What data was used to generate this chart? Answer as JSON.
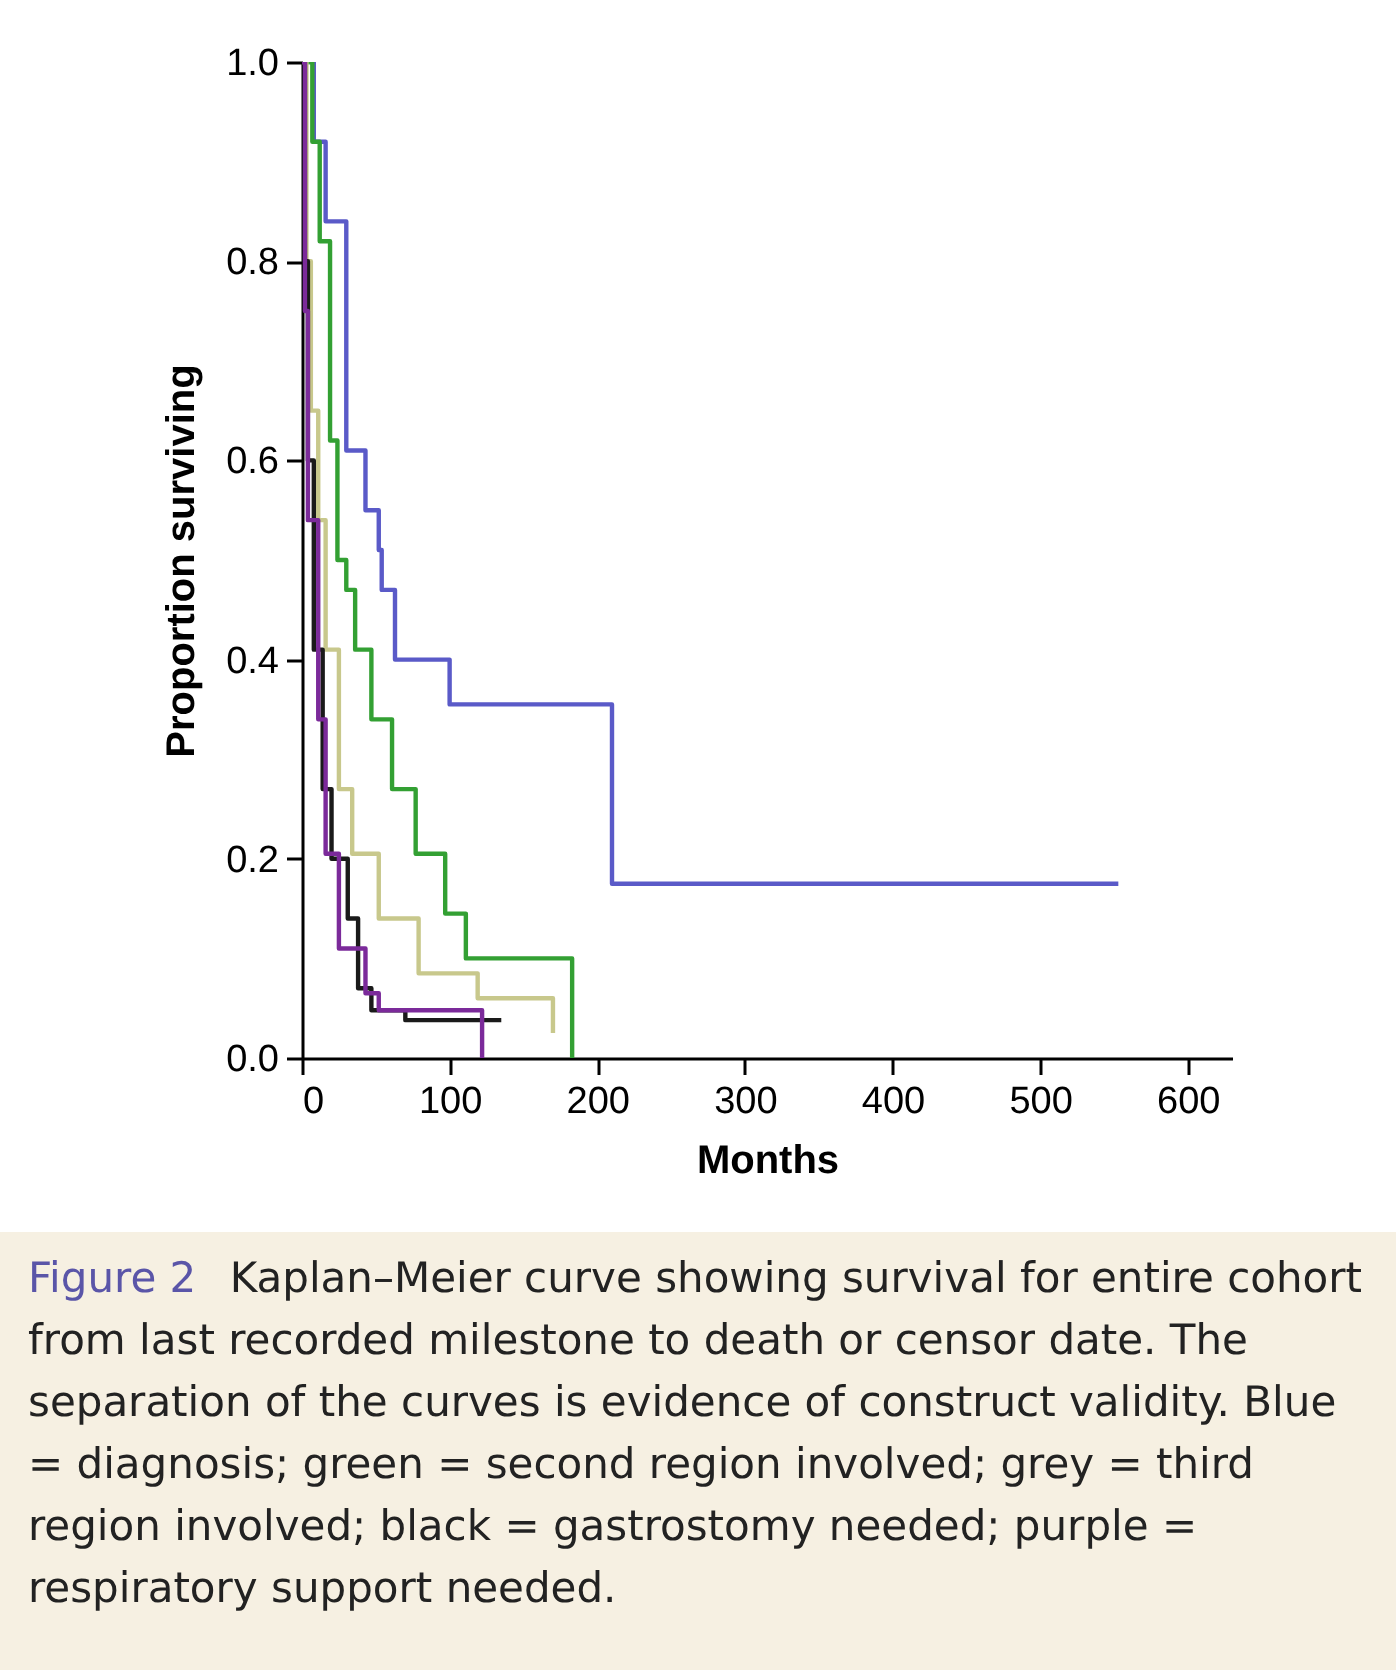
{
  "chart_data": {
    "type": "step",
    "xlabel": "Months",
    "ylabel": "Proportion surviving",
    "xlim": [
      0,
      630
    ],
    "ylim": [
      0,
      1
    ],
    "xticks": [
      0,
      100,
      200,
      300,
      400,
      500,
      600
    ],
    "yticks": [
      {
        "value": 0,
        "label": "0.0"
      },
      {
        "value": 0.2,
        "label": "0.2"
      },
      {
        "value": 0.4,
        "label": "0.4"
      },
      {
        "value": 0.6,
        "label": "0.6"
      },
      {
        "value": 0.8,
        "label": "0.8"
      },
      {
        "value": 1,
        "label": "1.0"
      }
    ],
    "grid": false,
    "line_style": "solid",
    "series": [
      {
        "color": "#5a5ac8",
        "x": [
          0,
          8,
          16,
          30,
          43,
          52,
          54,
          63,
          100,
          210,
          553
        ],
        "values": [
          1,
          0.92,
          0.84,
          0.61,
          0.55,
          0.51,
          0.47,
          0.4,
          0.355,
          0.175,
          0.175
        ]
      },
      {
        "color": "#33a033",
        "x": [
          0,
          7,
          12,
          19,
          24,
          30,
          36,
          47,
          61,
          77,
          97,
          111,
          183
        ],
        "values": [
          1,
          0.92,
          0.82,
          0.62,
          0.5,
          0.47,
          0.41,
          0.34,
          0.27,
          0.205,
          0.145,
          0.1,
          0
        ]
      },
      {
        "color": "#c8c88c",
        "x": [
          0,
          3,
          6,
          11,
          16,
          25,
          34,
          52,
          79,
          119,
          170
        ],
        "values": [
          1,
          0.8,
          0.65,
          0.54,
          0.41,
          0.27,
          0.205,
          0.14,
          0.085,
          0.06,
          0.025
        ]
      },
      {
        "color": "#1a1a1a",
        "x": [
          0,
          2,
          4,
          8,
          14,
          20,
          31,
          38,
          47,
          70,
          135
        ],
        "values": [
          1,
          0.8,
          0.6,
          0.41,
          0.27,
          0.2,
          0.14,
          0.07,
          0.048,
          0.038,
          0.038
        ]
      },
      {
        "color": "#7b2a9a",
        "x": [
          0,
          2,
          4,
          11,
          16,
          25,
          43,
          52,
          122
        ],
        "values": [
          1,
          0.75,
          0.54,
          0.34,
          0.205,
          0.11,
          0.065,
          0.048,
          0
        ]
      }
    ],
    "annotations": [
      "Figure 2",
      "Kaplan–Meier curve showing survival for entire cohort from last recorded milestone to death or censor date. The separation of the curves is evidence of construct validity. Blue = diagnosis; green = second region involved; grey = third region involved; black = gastrostomy needed; purple = respiratory support needed."
    ]
  }
}
